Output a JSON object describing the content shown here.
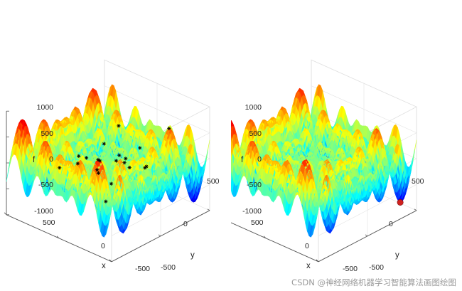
{
  "chart_data": [
    {
      "type": "surface3d",
      "xlabel": "x",
      "ylabel": "y",
      "zlabel": "f",
      "xlim": [
        -500,
        500
      ],
      "ylim": [
        -500,
        500
      ],
      "zlim": [
        -1000,
        1000
      ],
      "x_ticks": [
        "500",
        "0",
        "-500"
      ],
      "y_ticks": [
        "-500",
        "0",
        "500"
      ],
      "z_ticks": [
        "1000",
        "500",
        "0",
        "-500",
        "-1000"
      ],
      "colormap": "jet",
      "grid": true,
      "markers": {
        "style": "asterisk",
        "color": "#000000",
        "points": [
          [
            -260,
            -20
          ],
          [
            -150,
            120
          ],
          [
            -80,
            200
          ],
          [
            60,
            260
          ],
          [
            120,
            -240
          ],
          [
            -200,
            -280
          ],
          [
            20,
            -120
          ],
          [
            100,
            60
          ],
          [
            -40,
            -40
          ],
          [
            220,
            140
          ],
          [
            260,
            -60
          ],
          [
            -300,
            220
          ],
          [
            180,
            -160
          ],
          [
            -120,
            -180
          ],
          [
            300,
            300
          ],
          [
            -280,
            80
          ],
          [
            40,
            40
          ],
          [
            -160,
            280
          ],
          [
            240,
            -280
          ],
          [
            0,
            180
          ],
          [
            160,
            220
          ]
        ]
      }
    },
    {
      "type": "surface3d",
      "xlabel": "x",
      "ylabel": "y",
      "zlabel": "f",
      "xlim": [
        -500,
        500
      ],
      "ylim": [
        -500,
        500
      ],
      "zlim": [
        -1000,
        1000
      ],
      "x_ticks": [
        "500",
        "0",
        "-500"
      ],
      "y_ticks": [
        "-500",
        "0",
        "500"
      ],
      "z_ticks": [
        "1000",
        "500",
        "0",
        "-500",
        "-1000"
      ],
      "colormap": "jet",
      "grid": true,
      "markers": {
        "style": "filled-circle",
        "color": "#d0201e",
        "points": [
          [
            420,
            420
          ]
        ]
      }
    }
  ],
  "watermark": "CSDN @神经网络机器学习智能算法画图绘图"
}
